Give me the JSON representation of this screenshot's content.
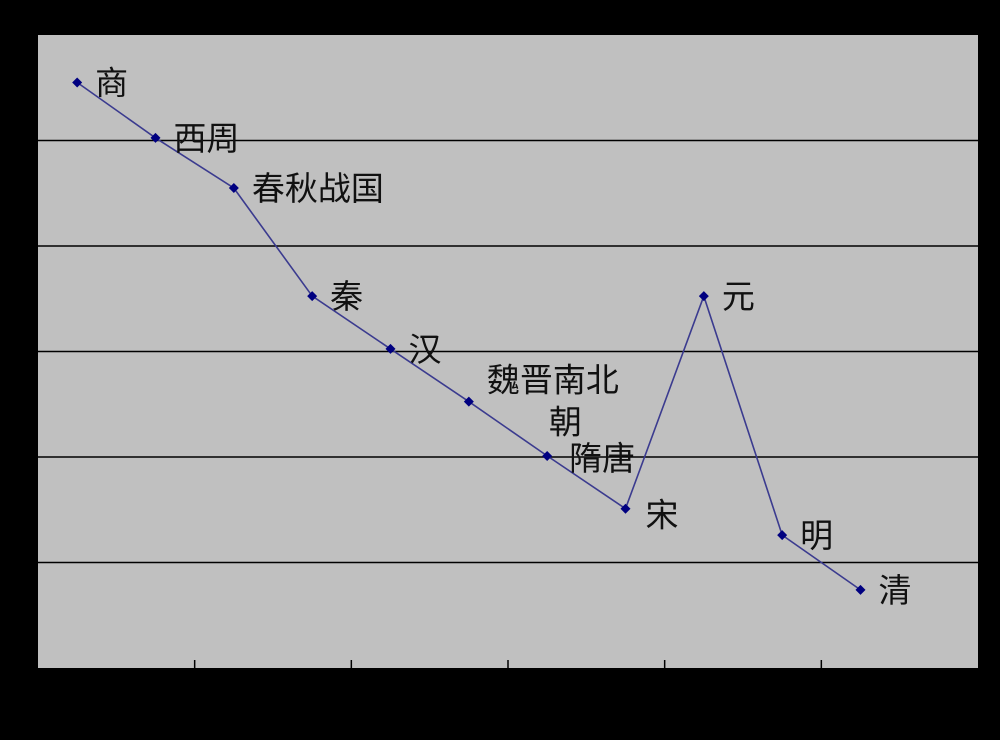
{
  "colors": {
    "background": "#000000",
    "plot_area": "#c0c0c0",
    "gridline": "#000000",
    "series_line": "#3b3b8f",
    "marker": "#000080",
    "label_text": "#111111"
  },
  "chart_data": {
    "type": "line",
    "title": "",
    "xlabel": "",
    "ylabel": "",
    "grid": true,
    "legend": "none",
    "ylim": [
      0,
      12
    ],
    "xlim": [
      0,
      12
    ],
    "points": [
      {
        "label": "商",
        "x": 0.5,
        "y": 11.1
      },
      {
        "label": "西周",
        "x": 1.5,
        "y": 10.05
      },
      {
        "label": "春秋战国",
        "x": 2.5,
        "y": 9.1
      },
      {
        "label": "秦",
        "x": 3.5,
        "y": 7.05
      },
      {
        "label": "汉",
        "x": 4.5,
        "y": 6.05
      },
      {
        "label": "魏晋南北朝",
        "x": 5.5,
        "y": 5.05
      },
      {
        "label": "隋唐",
        "x": 6.5,
        "y": 4.02
      },
      {
        "label": "宋",
        "x": 7.5,
        "y": 3.02
      },
      {
        "label": "元",
        "x": 8.5,
        "y": 7.05
      },
      {
        "label": "明",
        "x": 9.5,
        "y": 2.52
      },
      {
        "label": "清",
        "x": 10.5,
        "y": 1.48
      }
    ]
  }
}
